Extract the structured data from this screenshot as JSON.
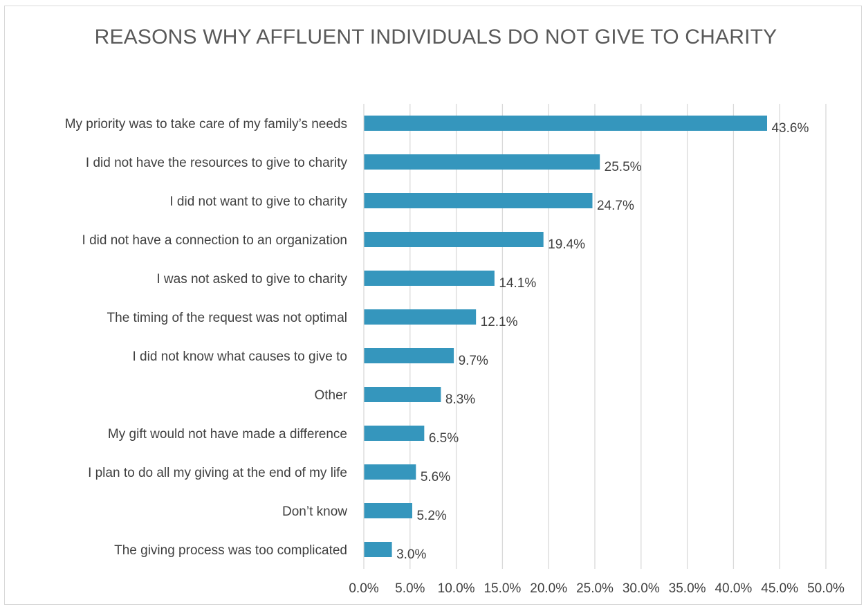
{
  "chart_data": {
    "type": "bar",
    "orientation": "horizontal",
    "title": "REASONS WHY AFFLUENT INDIVIDUALS DO NOT GIVE TO CHARITY",
    "categories": [
      "My priority was to take care of my family’s needs",
      "I did not have the resources to give to charity",
      "I did not want to give to charity",
      "I did not have a connection to an organization",
      "I was not asked to give to charity",
      "The timing of the request was not optimal",
      "I did not know what causes to give to",
      "Other",
      "My gift would not have made a difference",
      "I plan to do all my giving at the end of my life",
      "Don’t know",
      "The giving process was too complicated"
    ],
    "values": [
      43.6,
      25.5,
      24.7,
      19.4,
      14.1,
      12.1,
      9.7,
      8.3,
      6.5,
      5.6,
      5.2,
      3.0
    ],
    "value_labels": [
      "43.6%",
      "25.5%",
      "24.7%",
      "19.4%",
      "14.1%",
      "12.1%",
      "9.7%",
      "8.3%",
      "6.5%",
      "5.6%",
      "5.2%",
      "3.0%"
    ],
    "xlim": [
      0,
      50
    ],
    "x_ticks": [
      0,
      5,
      10,
      15,
      20,
      25,
      30,
      35,
      40,
      45,
      50
    ],
    "x_tick_labels": [
      "0.0%",
      "5.0%",
      "10.0%",
      "15.0%",
      "20.0%",
      "25.0%",
      "30.0%",
      "35.0%",
      "40.0%",
      "45.0%",
      "50.0%"
    ],
    "xlabel": "",
    "ylabel": "",
    "grid": "vertical",
    "legend": "none",
    "bar_color": "#3596bd",
    "grid_color": "#d9d9d9",
    "text_color": "#404040"
  }
}
